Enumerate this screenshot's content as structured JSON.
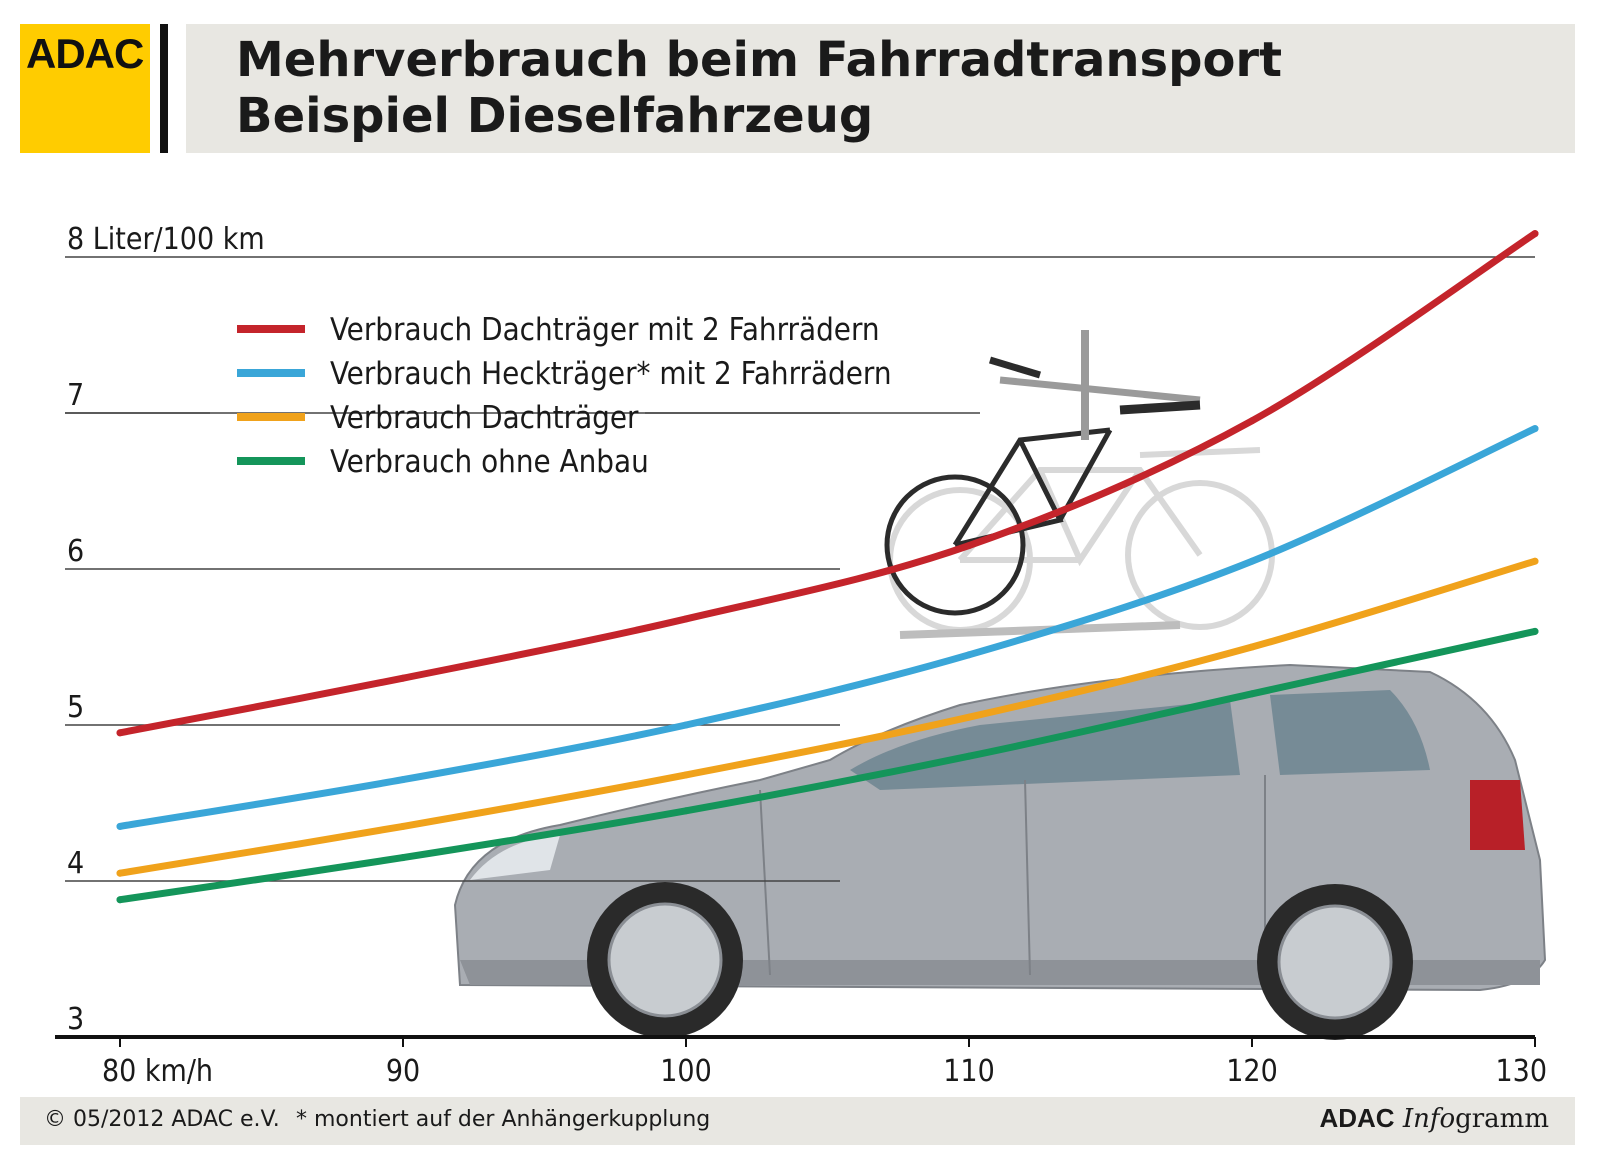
{
  "header": {
    "logo": "ADAC",
    "title": "Mehrverbrauch beim Fahrradtransport",
    "subtitle": "Beispiel Dieselfahrzeug"
  },
  "colors": {
    "red": "#c4242b",
    "blue": "#3aa6d8",
    "orange": "#f0a21b",
    "green": "#14955a",
    "logo_yellow": "#ffcc00",
    "panel_grey": "#e8e7e2"
  },
  "chart_data": {
    "type": "line",
    "ylabel": "Liter/100 km",
    "xlabel": "km/h",
    "x": [
      80,
      90,
      100,
      110,
      120,
      130
    ],
    "x_tick_labels": [
      "80 km/h",
      "90",
      "100",
      "110",
      "120",
      "130"
    ],
    "y_ticks": [
      3,
      4,
      5,
      6,
      7,
      8
    ],
    "y_tick_labels": [
      "3",
      "4",
      "5",
      "6",
      "7",
      "8 Liter/100 km"
    ],
    "xlim": [
      80,
      130
    ],
    "ylim": [
      3,
      8
    ],
    "grid": "horizontal",
    "legend_position": "top-left",
    "series": [
      {
        "name": "Verbrauch Dachträger mit 2 Fahrrädern",
        "color": "#c4242b",
        "values": [
          4.95,
          5.3,
          5.68,
          6.15,
          6.95,
          8.15
        ]
      },
      {
        "name": "Verbrauch Heckträger* mit 2 Fahrrädern",
        "color": "#3aa6d8",
        "values": [
          4.35,
          4.65,
          5.0,
          5.45,
          6.05,
          6.9
        ]
      },
      {
        "name": "Verbrauch Dachträger",
        "color": "#f0a21b",
        "values": [
          4.05,
          4.35,
          4.68,
          5.05,
          5.5,
          6.05
        ]
      },
      {
        "name": "Verbrauch ohne Anbau",
        "color": "#14955a",
        "values": [
          3.88,
          4.15,
          4.45,
          4.8,
          5.2,
          5.6
        ]
      }
    ]
  },
  "footer": {
    "copyright": "© 05/2012 ADAC e.V.",
    "footnote": "* montiert auf der Anhängerkupplung",
    "brand_a": "ADAC",
    "brand_b": "Info",
    "brand_c": "gramm"
  }
}
